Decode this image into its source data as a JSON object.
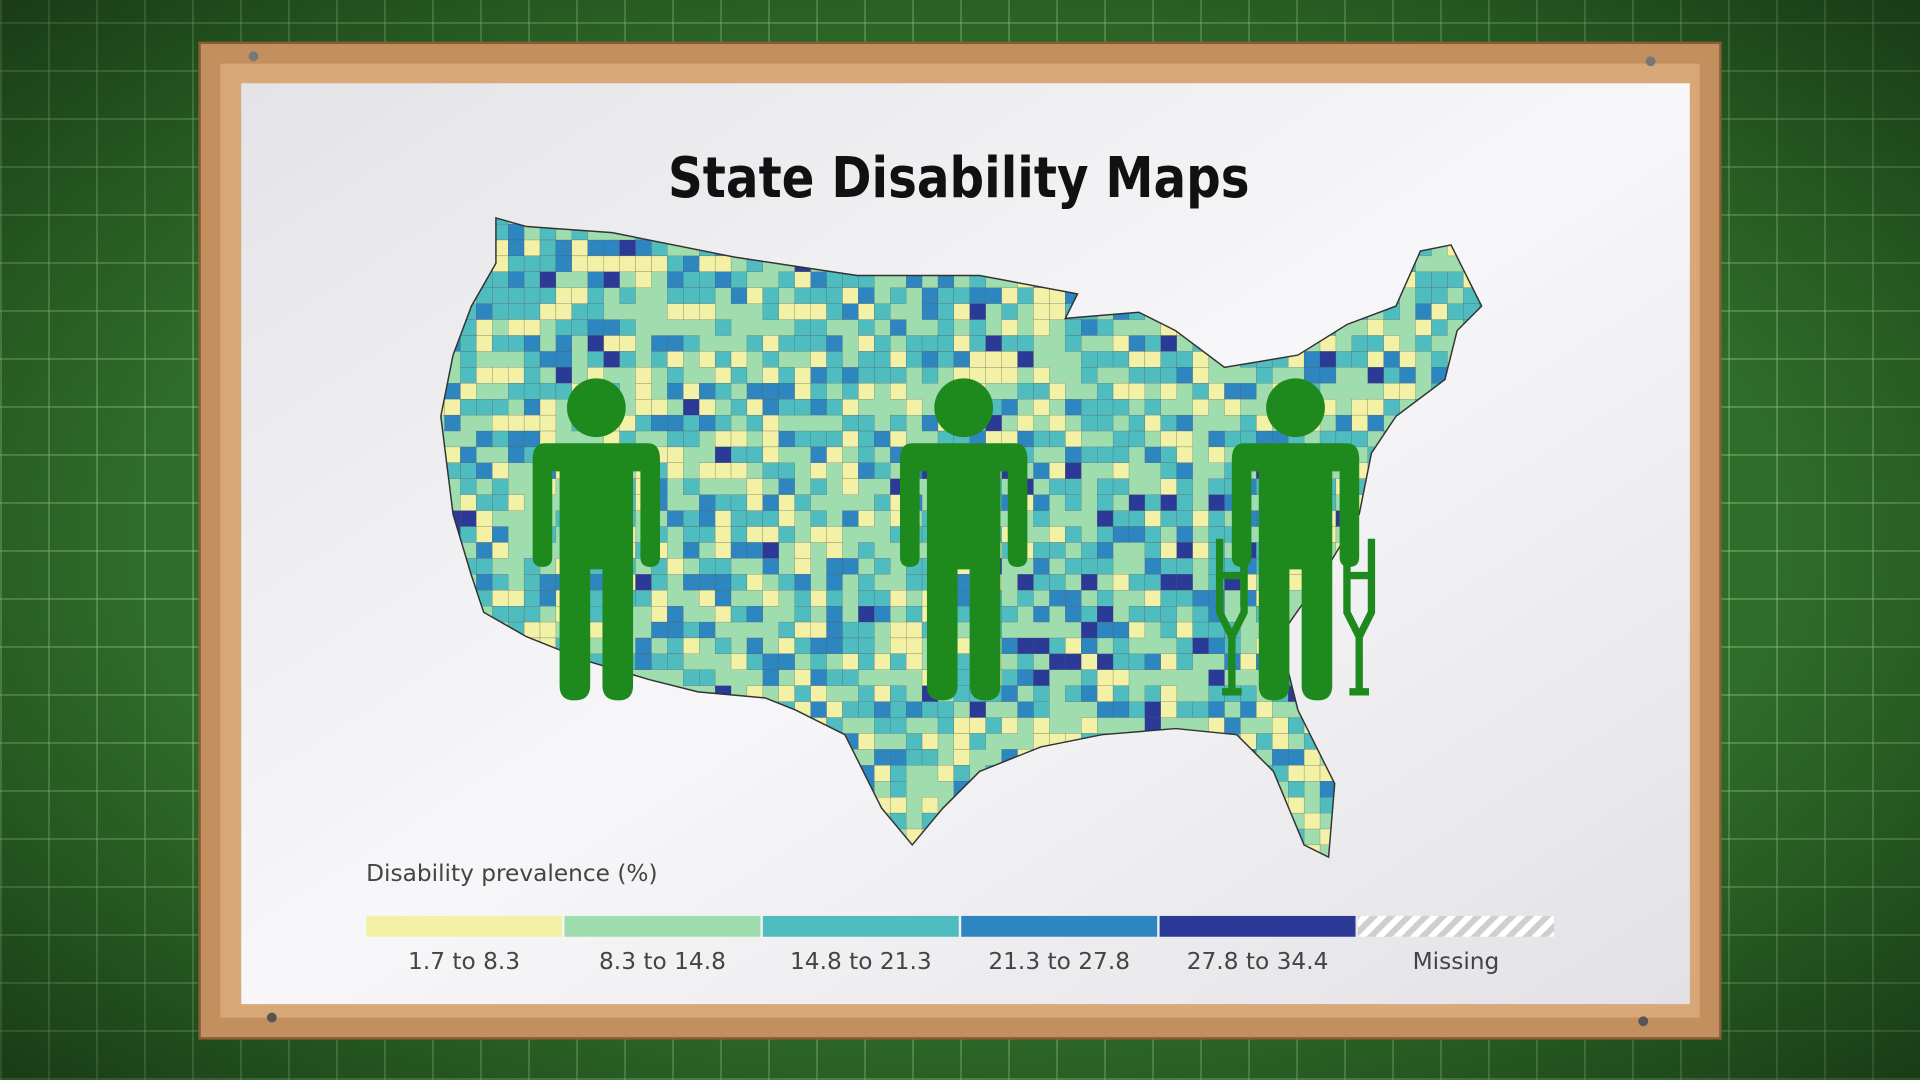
{
  "title": "State Disability Maps",
  "legend": {
    "title": "Disability prevalence (%)",
    "items": [
      {
        "label": "1.7 to 8.3",
        "color": "#f3f1a6"
      },
      {
        "label": "8.3 to 14.8",
        "color": "#9fdcae"
      },
      {
        "label": "14.8 to 21.3",
        "color": "#4fbcc0"
      },
      {
        "label": "21.3 to 27.8",
        "color": "#2e86c0"
      },
      {
        "label": "27.8 to 34.4",
        "color": "#2a3a96"
      },
      {
        "label": "Missing",
        "color": "#cfcfcf",
        "style": "hatched"
      }
    ]
  }
}
